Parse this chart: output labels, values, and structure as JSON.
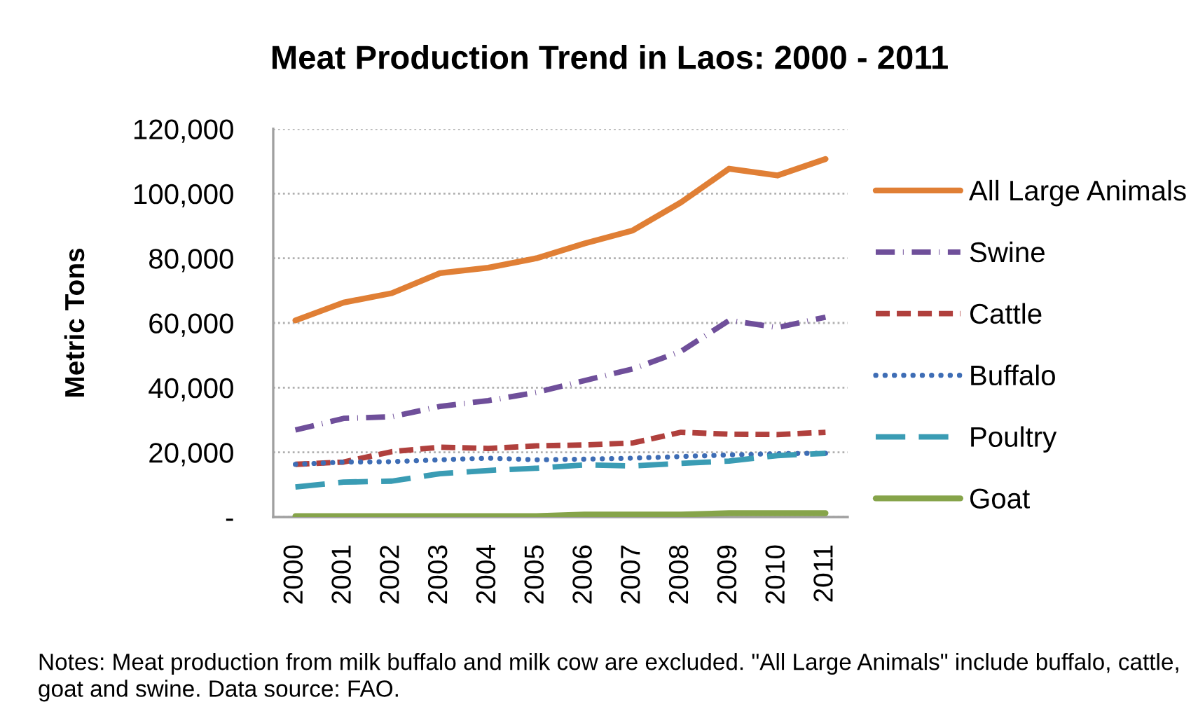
{
  "chart_data": {
    "type": "line",
    "title": "Meat Production Trend in Laos: 2000 - 2011",
    "ylabel": "Metric Tons",
    "categories": [
      "2000",
      "2001",
      "2002",
      "2003",
      "2004",
      "2005",
      "2006",
      "2007",
      "2008",
      "2009",
      "2010",
      "2011"
    ],
    "series": [
      {
        "name": "All Large Animals",
        "color": "#e07f35",
        "line_style": "solid",
        "values": [
          60800,
          66300,
          69200,
          75400,
          77100,
          80000,
          84600,
          88600,
          97300,
          107700,
          105600,
          110700
        ]
      },
      {
        "name": "Swine",
        "color": "#6f4f9a",
        "line_style": "dashdot",
        "values": [
          26900,
          30500,
          31000,
          34200,
          36000,
          38500,
          42200,
          45800,
          51200,
          60800,
          58600,
          61800
        ]
      },
      {
        "name": "Cattle",
        "color": "#b0403d",
        "line_style": "dashed",
        "values": [
          16300,
          17000,
          20200,
          21600,
          21200,
          22000,
          22300,
          22900,
          26200,
          25600,
          25500,
          26200
        ]
      },
      {
        "name": "Buffalo",
        "color": "#3e6db5",
        "line_style": "dotted",
        "values": [
          16300,
          17000,
          17100,
          17700,
          18200,
          17700,
          17900,
          18200,
          18700,
          19200,
          19600,
          19700
        ]
      },
      {
        "name": "Poultry",
        "color": "#3a9cb4",
        "line_style": "longdash",
        "values": [
          9300,
          10800,
          11100,
          13400,
          14400,
          15100,
          16100,
          15800,
          16600,
          17300,
          19000,
          19700
        ]
      },
      {
        "name": "Goat",
        "color": "#86a44a",
        "line_style": "solid",
        "values": [
          300,
          300,
          300,
          300,
          300,
          300,
          800,
          800,
          800,
          1200,
          1200,
          1200
        ]
      }
    ],
    "ylim": [
      0,
      120000
    ],
    "yticks": [
      {
        "value": 0,
        "label": "-"
      },
      {
        "value": 20000,
        "label": "20,000"
      },
      {
        "value": 40000,
        "label": "40,000"
      },
      {
        "value": 60000,
        "label": "60,000"
      },
      {
        "value": 80000,
        "label": "80,000"
      },
      {
        "value": 100000,
        "label": "100,000"
      },
      {
        "value": 120000,
        "label": "120,000"
      }
    ],
    "grid": "y",
    "legend": "right",
    "marker": "none",
    "annotations": [
      "Notes: Meat production from milk buffalo and milk cow are excluded. \"All Large Animals\" include buffalo, cattle, goat and swine. Data source: FAO."
    ]
  }
}
